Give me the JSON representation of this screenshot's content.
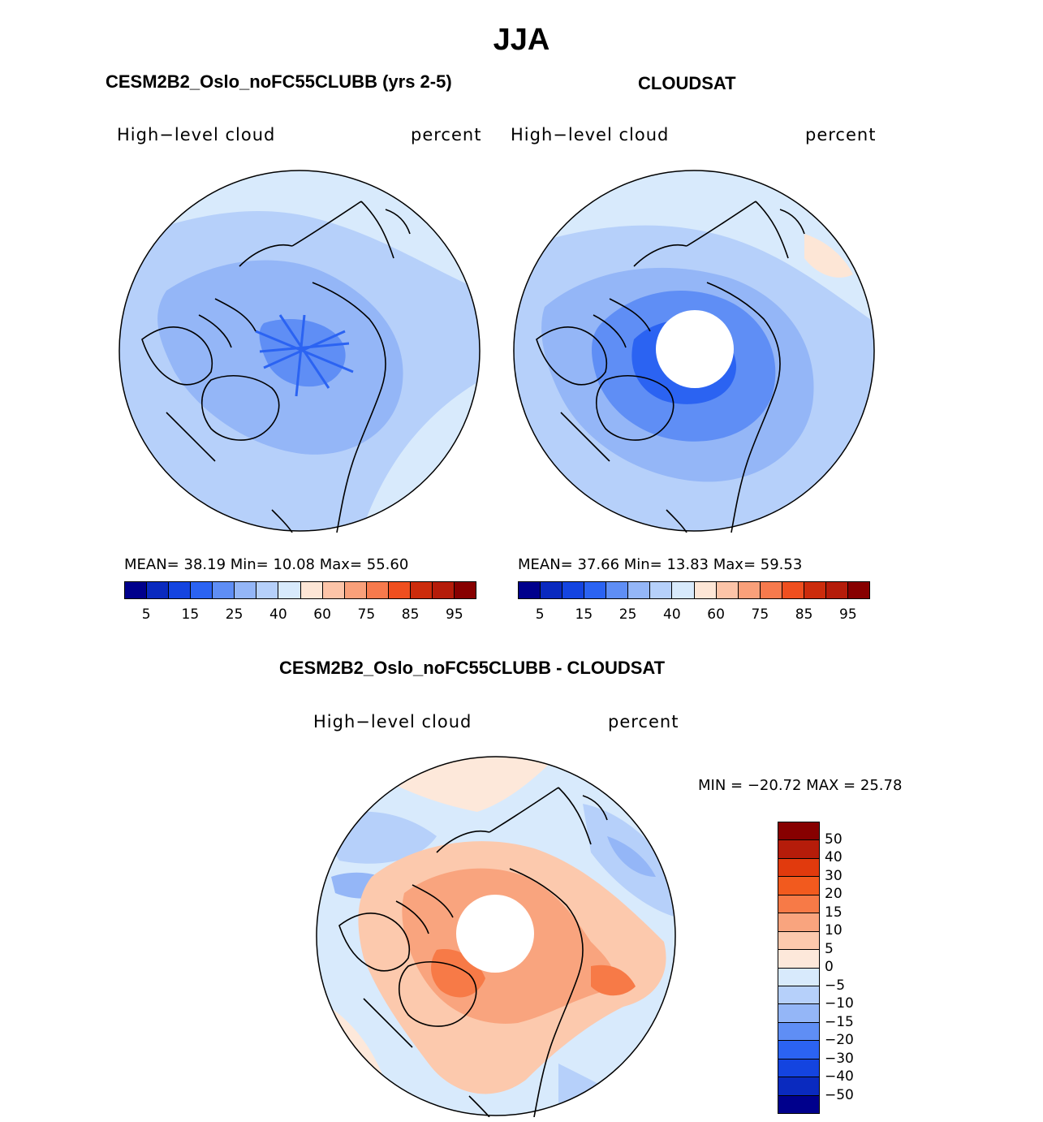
{
  "title": "JJA",
  "panel_left": {
    "title": "CESM2B2_Oslo_noFC55CLUBB (yrs 2-5)",
    "variable": "High−level cloud",
    "units": "percent",
    "stats": "MEAN=   38.19   Min=   10.08   Max=   55.60"
  },
  "panel_right": {
    "title": "CLOUDSAT",
    "variable": "High−level cloud",
    "units": "percent",
    "stats": "MEAN=   37.66   Min=   13.83   Max=   59.53"
  },
  "panel_diff": {
    "title": "CESM2B2_Oslo_noFC55CLUBB - CLOUDSAT",
    "variable": "High−level cloud",
    "units": "percent",
    "stats": "MIN = −20.72 MAX =   25.78"
  },
  "colorbar_abs": {
    "colors": [
      "#00008c",
      "#0a2abf",
      "#1444e0",
      "#2b63f2",
      "#5f8ef5",
      "#94b6f7",
      "#b6d0fa",
      "#d8eafc",
      "#fde6d6",
      "#fcc4a8",
      "#f9a07a",
      "#f67a4d",
      "#ef4f1f",
      "#cc2c0c",
      "#b51c0a",
      "#870000"
    ],
    "ticks": [
      "5",
      "15",
      "25",
      "40",
      "60",
      "75",
      "85",
      "95"
    ]
  },
  "colorbar_diff": {
    "colors": [
      "#870000",
      "#b51c0a",
      "#e13a0d",
      "#f25a1e",
      "#f77a47",
      "#f9a47e",
      "#fcc9ad",
      "#fde8da",
      "#d8eafc",
      "#b6d0fa",
      "#94b6f7",
      "#5f8ef5",
      "#2b63f2",
      "#1444e0",
      "#0a2abf",
      "#00008c"
    ],
    "ticks": [
      "50",
      "40",
      "30",
      "20",
      "15",
      "10",
      "5",
      "0",
      "−5",
      "−10",
      "−15",
      "−20",
      "−30",
      "−40",
      "−50"
    ]
  },
  "map_colors": {
    "abs_base": "#b6d0fa",
    "abs_light": "#d8eafc",
    "abs_mid": "#94b6f7",
    "abs_dark": "#5f8ef5",
    "abs_darker": "#2b63f2",
    "diff_warm": "#fcc9ad",
    "diff_warmer": "#f9a47e",
    "diff_hot": "#f77a47",
    "diff_pale": "#fde8da",
    "diff_cool": "#d8eafc",
    "diff_cooler": "#b6d0fa",
    "diff_cold": "#94b6f7"
  }
}
